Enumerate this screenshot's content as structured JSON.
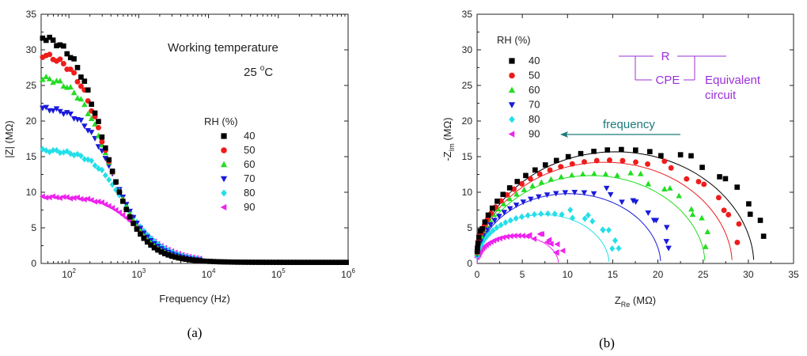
{
  "chart_data": [
    {
      "type": "scatter",
      "panel_label": "(a)",
      "xlabel": "Frequency (Hz)",
      "ylabel": "|Z| (MΩ)",
      "xscale": "log",
      "xlim": [
        40,
        1000000
      ],
      "ylim": [
        0,
        35
      ],
      "yticks": [
        0,
        5,
        10,
        15,
        20,
        25,
        30,
        35
      ],
      "xtick_labels": [
        {
          "base": "10",
          "exp": "2",
          "value": 100
        },
        {
          "base": "10",
          "exp": "3",
          "value": 1000
        },
        {
          "base": "10",
          "exp": "4",
          "value": 10000
        },
        {
          "base": "10",
          "exp": "5",
          "value": 100000
        },
        {
          "base": "10",
          "exp": "6",
          "value": 1000000
        }
      ],
      "annotations": {
        "line1": "Working temperature",
        "line2_value": "25",
        "line2_deg": "o",
        "line2_unit": "C"
      },
      "legend_title": "RH (%)",
      "legend_position": "center-right",
      "series": [
        {
          "name": "40",
          "color": "#000000",
          "marker": "square",
          "low_freq_value": 32.2,
          "corner_hz": 270,
          "decay_power": 1.5
        },
        {
          "name": "50",
          "color": "#ee1c1c",
          "marker": "circle",
          "low_freq_value": 29.6,
          "corner_hz": 290,
          "decay_power": 1.5
        },
        {
          "name": "60",
          "color": "#22dd22",
          "marker": "triangle-up",
          "low_freq_value": 26.2,
          "corner_hz": 320,
          "decay_power": 1.45
        },
        {
          "name": "70",
          "color": "#1a1adc",
          "marker": "triangle-down",
          "low_freq_value": 21.8,
          "corner_hz": 380,
          "decay_power": 1.4
        },
        {
          "name": "80",
          "color": "#22dfe8",
          "marker": "diamond",
          "low_freq_value": 15.8,
          "corner_hz": 480,
          "decay_power": 1.3
        },
        {
          "name": "90",
          "color": "#ee22ee",
          "marker": "triangle-left",
          "low_freq_value": 9.2,
          "corner_hz": 700,
          "decay_power": 1.2
        }
      ]
    },
    {
      "type": "scatter",
      "panel_label": "(b)",
      "xlabel_main": "Z",
      "xlabel_sub": "Re",
      "xlabel_unit": " (MΩ)",
      "ylabel_main": "-Z",
      "ylabel_sub": "Im",
      "ylabel_unit": " (MΩ)",
      "xlim": [
        0,
        35
      ],
      "ylim": [
        0,
        35
      ],
      "xticks": [
        0,
        5,
        10,
        15,
        20,
        25,
        30,
        35
      ],
      "yticks": [
        0,
        5,
        10,
        15,
        20,
        25,
        30,
        35
      ],
      "legend_title": "RH (%)",
      "legend_position": "top-left",
      "frequency_label": "frequency",
      "equivalent_circuit": {
        "r_label": "R",
        "cpe_label": "CPE",
        "title_line1": "Equivalent",
        "title_line2": "circuit"
      },
      "series": [
        {
          "name": "40",
          "color": "#000000",
          "marker": "square",
          "arc_diameter": 31.8,
          "arc_height": 16.0,
          "fit_diameter": 30.6
        },
        {
          "name": "50",
          "color": "#ee1c1c",
          "marker": "circle",
          "arc_diameter": 29.2,
          "arc_height": 14.5,
          "fit_diameter": 28.2
        },
        {
          "name": "60",
          "color": "#22dd22",
          "marker": "triangle-up",
          "arc_diameter": 25.8,
          "arc_height": 12.6,
          "fit_diameter": 25.2
        },
        {
          "name": "70",
          "color": "#1a1adc",
          "marker": "triangle-down",
          "arc_diameter": 21.5,
          "arc_height": 10.0,
          "fit_diameter": 20.3
        },
        {
          "name": "80",
          "color": "#22dfe8",
          "marker": "diamond",
          "arc_diameter": 15.6,
          "arc_height": 7.0,
          "fit_diameter": 14.6
        },
        {
          "name": "90",
          "color": "#ee22ee",
          "marker": "triangle-left",
          "arc_diameter": 9.2,
          "arc_height": 3.9,
          "fit_diameter": 9.0
        }
      ]
    }
  ]
}
